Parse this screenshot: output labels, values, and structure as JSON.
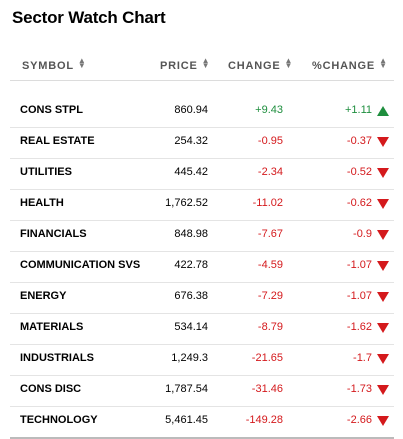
{
  "title": "Sector Watch Chart",
  "columns": {
    "symbol": "SYMBOL",
    "price": "PRICE",
    "change": "CHANGE",
    "pct_change": "%CHANGE"
  },
  "colors": {
    "up": "#1e8e3e",
    "down": "#d4191c"
  },
  "rows": [
    {
      "symbol": "CONS STPL",
      "price": "860.94",
      "change": "+9.43",
      "pct": "+1.11",
      "dir": "up"
    },
    {
      "symbol": "REAL ESTATE",
      "price": "254.32",
      "change": "-0.95",
      "pct": "-0.37",
      "dir": "down"
    },
    {
      "symbol": "UTILITIES",
      "price": "445.42",
      "change": "-2.34",
      "pct": "-0.52",
      "dir": "down"
    },
    {
      "symbol": "HEALTH",
      "price": "1,762.52",
      "change": "-11.02",
      "pct": "-0.62",
      "dir": "down"
    },
    {
      "symbol": "FINANCIALS",
      "price": "848.98",
      "change": "-7.67",
      "pct": "-0.9",
      "dir": "down"
    },
    {
      "symbol": "COMMUNICATION SVS",
      "price": "422.78",
      "change": "-4.59",
      "pct": "-1.07",
      "dir": "down"
    },
    {
      "symbol": "ENERGY",
      "price": "676.38",
      "change": "-7.29",
      "pct": "-1.07",
      "dir": "down"
    },
    {
      "symbol": "MATERIALS",
      "price": "534.14",
      "change": "-8.79",
      "pct": "-1.62",
      "dir": "down"
    },
    {
      "symbol": "INDUSTRIALS",
      "price": "1,249.3",
      "change": "-21.65",
      "pct": "-1.7",
      "dir": "down"
    },
    {
      "symbol": "CONS DISC",
      "price": "1,787.54",
      "change": "-31.46",
      "pct": "-1.73",
      "dir": "down"
    },
    {
      "symbol": "TECHNOLOGY",
      "price": "5,461.45",
      "change": "-149.28",
      "pct": "-2.66",
      "dir": "down"
    }
  ]
}
